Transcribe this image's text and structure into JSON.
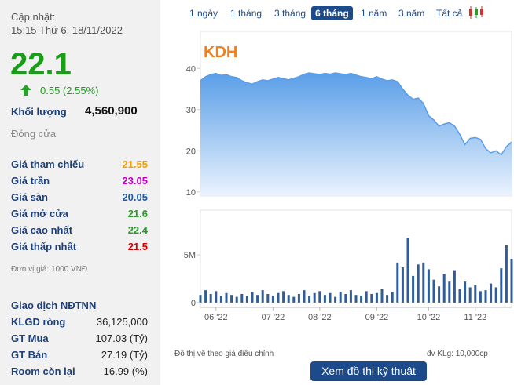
{
  "quote": {
    "updated_label": "Cập nhật:",
    "updated_time": "15:15 Thứ 6, 18/11/2022",
    "price": 22.1,
    "change": "0.55 (2.55%)",
    "volume_label": "Khối lượng",
    "volume": "4,560,900",
    "status": "Đóng cửa",
    "rows": [
      [
        "Giá tham chiếu",
        "21.55"
      ],
      [
        "Giá trần",
        "23.05"
      ],
      [
        "Giá sàn",
        "20.05"
      ],
      [
        "Giá mở cửa",
        "21.6"
      ],
      [
        "Giá cao nhất",
        "22.4"
      ],
      [
        "Giá thấp nhất",
        "21.5"
      ]
    ],
    "unit_note": "Đơn vị giá: 1000 VNĐ"
  },
  "foreign": {
    "title": "Giao dịch NĐTNN",
    "rows": [
      [
        "KLGD ròng",
        "36,125,000"
      ],
      [
        "GT Mua",
        "107.03 (Tỷ)"
      ],
      [
        "GT Bán",
        "27.19 (Tỷ)"
      ],
      [
        "Room còn lại",
        "16.99 (%)"
      ]
    ]
  },
  "tabs": [
    "1 ngày",
    "1 tháng",
    "3 tháng",
    "6 tháng",
    "1 năm",
    "3 năm",
    "Tất cả"
  ],
  "active_tab": 3,
  "footer": {
    "note": "Đồ thị vẽ theo giá điều chỉnh",
    "unit": "đv KLg: 10,000cp",
    "button": "Xem đồ thị kỹ thuật"
  },
  "chart_data": [
    {
      "type": "area",
      "title": "KDH",
      "color": "#5a9ee8",
      "values": [
        37,
        38,
        38.5,
        38.8,
        38.3,
        38.5,
        38,
        37.8,
        37,
        36.5,
        36.2,
        36.8,
        37.2,
        37,
        37.4,
        37.8,
        37.5,
        37.2,
        37.6,
        38,
        38.6,
        38.9,
        38.7,
        38.5,
        38.8,
        38.6,
        38.9,
        38.7,
        38.5,
        38.8,
        38.4,
        38,
        37.8,
        37.5,
        38,
        37.4,
        37,
        37.2,
        36.8,
        35,
        33.5,
        32.5,
        32.8,
        31.5,
        28.5,
        27.5,
        26,
        26.5,
        26.8,
        26,
        24,
        21.5,
        23,
        23.2,
        22.8,
        20.5,
        19.5,
        20,
        19,
        21,
        22.1
      ],
      "ylim": [
        9,
        49
      ],
      "yticks": [
        10,
        20,
        30,
        40
      ]
    },
    {
      "type": "bar",
      "color": "#2f5d9a",
      "categories": [
        null,
        null,
        null,
        "06 '22",
        null,
        null,
        null,
        null,
        null,
        null,
        null,
        null,
        null,
        null,
        "07 '22",
        null,
        null,
        null,
        null,
        null,
        null,
        null,
        null,
        "08 '22",
        null,
        null,
        null,
        null,
        null,
        null,
        null,
        null,
        null,
        null,
        "09 '22",
        null,
        null,
        null,
        null,
        null,
        null,
        null,
        null,
        null,
        "10 '22",
        null,
        null,
        null,
        null,
        null,
        null,
        null,
        null,
        "11 '22",
        null,
        null,
        null,
        null,
        null,
        null,
        null
      ],
      "values": [
        800000,
        1300000,
        900000,
        1200000,
        700000,
        1000000,
        800000,
        600000,
        900000,
        700000,
        1100000,
        800000,
        1300000,
        900000,
        700000,
        1000000,
        1200000,
        800000,
        600000,
        900000,
        1300000,
        700000,
        1000000,
        1200000,
        800000,
        1000000,
        600000,
        1100000,
        900000,
        1300000,
        800000,
        700000,
        1200000,
        900000,
        1000000,
        1400000,
        800000,
        1100000,
        4200000,
        3700000,
        6800000,
        2800000,
        4000000,
        4200000,
        3500000,
        2400000,
        1700000,
        3000000,
        2200000,
        3400000,
        1400000,
        2200000,
        1600000,
        1800000,
        1200000,
        1300000,
        2000000,
        1600000,
        3600000,
        6000000,
        4600000
      ],
      "ylim": [
        -500000,
        9700000
      ],
      "yticks": [
        0,
        {
          "value": 5000000,
          "label": "5M"
        }
      ]
    }
  ]
}
